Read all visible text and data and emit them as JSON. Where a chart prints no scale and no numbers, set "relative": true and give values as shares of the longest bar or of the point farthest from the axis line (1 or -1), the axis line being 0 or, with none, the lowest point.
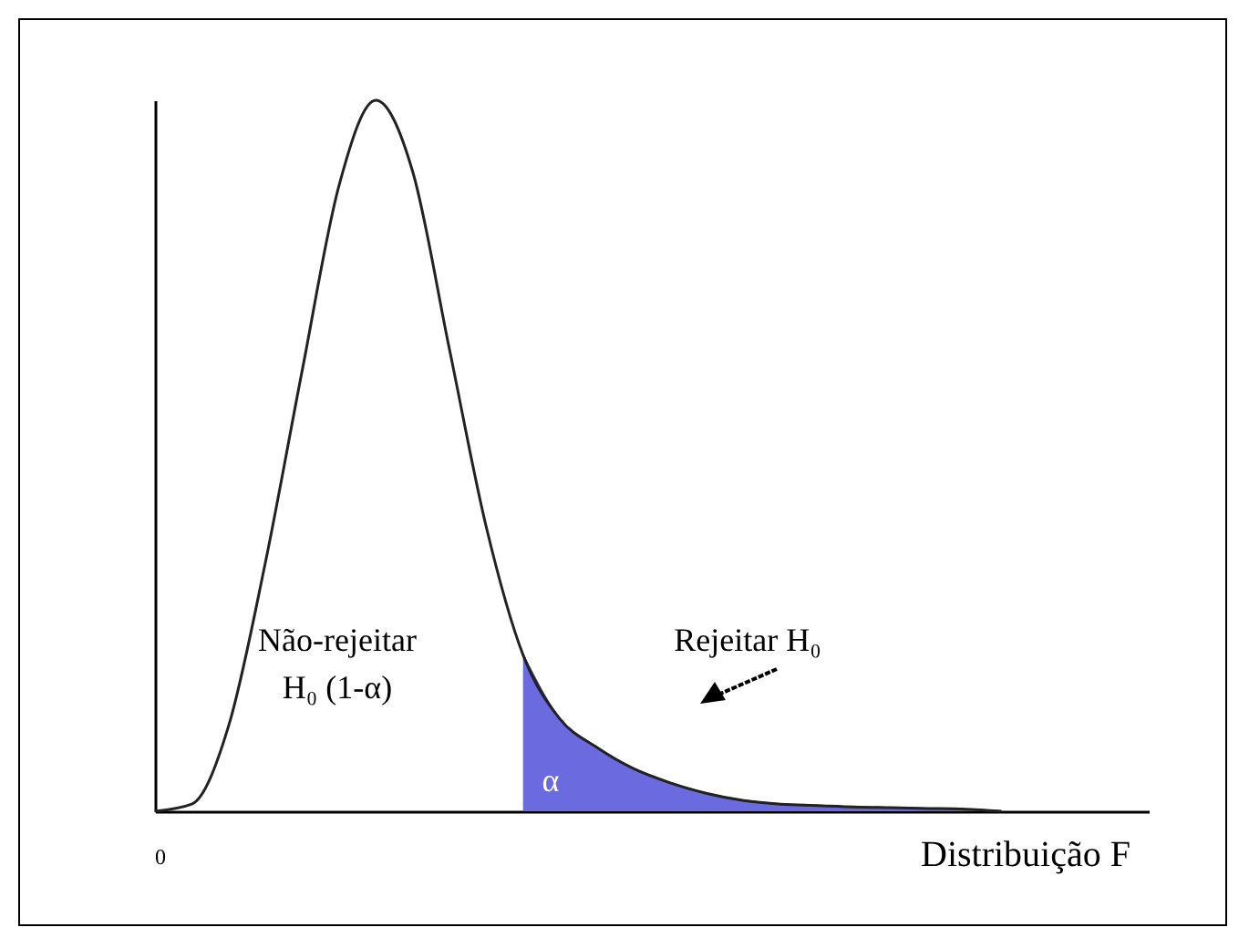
{
  "chart_data": {
    "type": "line",
    "relative": true,
    "xlabel": "Distribuição F",
    "categories": [
      null,
      null,
      null,
      null,
      null,
      null,
      null,
      null,
      null,
      null,
      null,
      null,
      null,
      null,
      null,
      null,
      null,
      null,
      null,
      null,
      null,
      null,
      null,
      null,
      null,
      null,
      null,
      null
    ],
    "series": [
      {
        "color": "#222222",
        "values": [
          0,
          0.01,
          0.12,
          0.35,
          0.62,
          0.88,
          1,
          0.9,
          0.65,
          0.4,
          0.22,
          0.13,
          0.09,
          0.06,
          0.04,
          0.025,
          0.015,
          0.01,
          0.008,
          0.006,
          0.005,
          0.004,
          0.003,
          0,
          null,
          null,
          null,
          null
        ]
      },
      {
        "type": "area",
        "color": "#6b6bdf",
        "values": [
          null,
          null,
          null,
          null,
          null,
          null,
          null,
          null,
          null,
          null,
          0.22,
          0.13,
          0.09,
          0.06,
          0.04,
          0.025,
          0.015,
          0.01,
          0.008,
          0.006,
          0.005,
          0.004,
          0.003,
          0,
          null,
          null,
          null,
          null
        ]
      }
    ],
    "annotations": [
      "Não-rejeitar\nH₀ (1-α)",
      "Rejeitar H₀",
      "α",
      "0"
    ]
  }
}
